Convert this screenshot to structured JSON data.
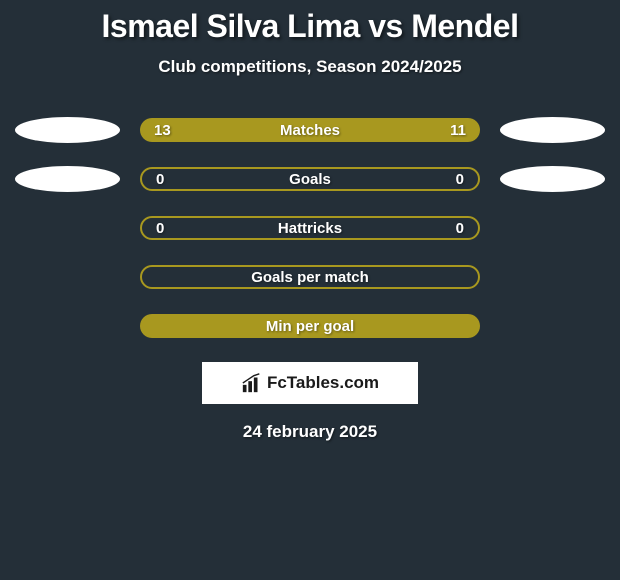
{
  "title": "Ismael Silva Lima vs Mendel",
  "subtitle": "Club competitions, Season 2024/2025",
  "colors": {
    "background": "#242f38",
    "bar_fill": "#a8981f",
    "bar_border": "#a8981f",
    "ellipse": "#ffffff",
    "text": "#ffffff",
    "logo_bg": "#ffffff",
    "logo_text": "#1a1a1a"
  },
  "typography": {
    "title_fontsize": 32,
    "subtitle_fontsize": 17,
    "stat_fontsize": 15,
    "date_fontsize": 17
  },
  "rows": [
    {
      "label": "Matches",
      "left_value": "13",
      "right_value": "11",
      "has_left_ellipse": true,
      "has_right_ellipse": true,
      "style": "filled"
    },
    {
      "label": "Goals",
      "left_value": "0",
      "right_value": "0",
      "has_left_ellipse": true,
      "has_right_ellipse": true,
      "style": "bordered"
    },
    {
      "label": "Hattricks",
      "left_value": "0",
      "right_value": "0",
      "has_left_ellipse": false,
      "has_right_ellipse": false,
      "style": "bordered"
    },
    {
      "label": "Goals per match",
      "left_value": "",
      "right_value": "",
      "has_left_ellipse": false,
      "has_right_ellipse": false,
      "style": "bordered"
    },
    {
      "label": "Min per goal",
      "left_value": "",
      "right_value": "",
      "has_left_ellipse": false,
      "has_right_ellipse": false,
      "style": "filled"
    }
  ],
  "logo": {
    "text": "FcTables.com"
  },
  "date": "24 february 2025"
}
